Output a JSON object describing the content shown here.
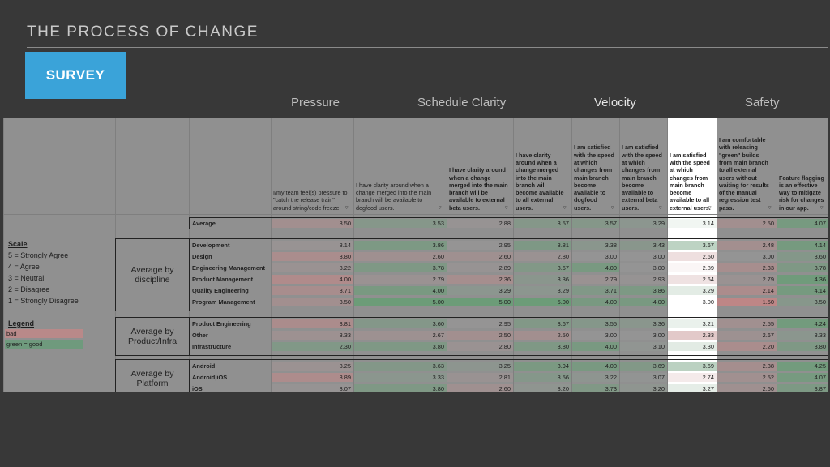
{
  "slide": {
    "title": "THE PROCESS OF CHANGE",
    "button_label": "SURVEY"
  },
  "categories": [
    "Pressure",
    "Schedule Clarity",
    "Velocity",
    "Safety"
  ],
  "columns": [
    "I/my team feel(s) pressure to \"catch the release train\" around string/code freeze.",
    "I have clarity around when a change merged into the main branch will be available to dogfood users.",
    "I have clarity around when a change merged into the main branch will be available to external beta users.",
    "I have clarity around when a change merged into the main branch will become available to all external users.",
    "I am satisfied with the speed at which changes from main branch become available to dogfood users.",
    "I am satisfied with the speed at which changes from main branch become available to external beta users.",
    "I am satisfied with the speed at which changes from main branch become available to all external users.",
    "I am comfortable with releasing \"green\" builds from main branch to all external users without waiting for results of the manual regression test pass.",
    "Feature flagging is an effective way to mitigate risk for changes in our app."
  ],
  "average_row": {
    "label": "Average",
    "values": [
      "3.50",
      "3.53",
      "2.88",
      "3.57",
      "3.57",
      "3.29",
      "3.14",
      "2.50",
      "4.07"
    ]
  },
  "groups": [
    {
      "label": "Average by discipline",
      "rows": [
        {
          "label": "Development",
          "values": [
            "3.14",
            "3.86",
            "2.95",
            "3.81",
            "3.38",
            "3.43",
            "3.67",
            "2.48",
            "4.14"
          ]
        },
        {
          "label": "Design",
          "values": [
            "3.80",
            "2.60",
            "2.60",
            "2.80",
            "3.00",
            "3.00",
            "2.60",
            "3.00",
            "3.60"
          ]
        },
        {
          "label": "Engineering Management",
          "values": [
            "3.22",
            "3.78",
            "2.89",
            "3.67",
            "4.00",
            "3.00",
            "2.89",
            "2.33",
            "3.78"
          ]
        },
        {
          "label": "Product Management",
          "values": [
            "4.00",
            "2.79",
            "2.36",
            "3.36",
            "2.79",
            "2.93",
            "2.64",
            "2.79",
            "4.36"
          ]
        },
        {
          "label": "Quality Engineering",
          "values": [
            "3.71",
            "4.00",
            "3.29",
            "3.29",
            "3.71",
            "3.86",
            "3.29",
            "2.14",
            "4.14"
          ]
        },
        {
          "label": "Program Management",
          "values": [
            "3.50",
            "5.00",
            "5.00",
            "5.00",
            "4.00",
            "4.00",
            "3.00",
            "1.50",
            "3.50"
          ]
        }
      ]
    },
    {
      "label": "Average by Product/Infra",
      "rows": [
        {
          "label": "Product Engineering",
          "values": [
            "3.81",
            "3.60",
            "2.95",
            "3.67",
            "3.55",
            "3.36",
            "3.21",
            "2.55",
            "4.24"
          ]
        },
        {
          "label": "Other",
          "values": [
            "3.33",
            "2.67",
            "2.50",
            "2.50",
            "3.00",
            "3.00",
            "2.33",
            "2.67",
            "3.33"
          ]
        },
        {
          "label": "Infrastructure",
          "values": [
            "2.30",
            "3.80",
            "2.80",
            "3.80",
            "4.00",
            "3.10",
            "3.30",
            "2.20",
            "3.80"
          ]
        }
      ]
    },
    {
      "label": "Average by Platform",
      "rows": [
        {
          "label": "Android",
          "values": [
            "3.25",
            "3.63",
            "3.25",
            "3.94",
            "4.00",
            "3.69",
            "3.69",
            "2.38",
            "4.25"
          ]
        },
        {
          "label": "Android|iOS",
          "values": [
            "3.89",
            "3.33",
            "2.81",
            "3.56",
            "3.22",
            "3.07",
            "2.74",
            "2.52",
            "4.07"
          ]
        },
        {
          "label": "iOS",
          "values": [
            "3.07",
            "3.80",
            "2.60",
            "3.20",
            "3.73",
            "3.20",
            "3.27",
            "2.60",
            "3.87"
          ]
        }
      ]
    }
  ],
  "scale": {
    "title": "Scale",
    "items": [
      "5 = Strongly Agree",
      "4 = Agree",
      "3 = Neutral",
      "2 = Disagree",
      "1 = Strongly Disagree"
    ]
  },
  "legend": {
    "title": "Legend",
    "items": [
      {
        "label": "bad",
        "color": "#b98989"
      },
      {
        "label": "green = good",
        "color": "#6f9a7d"
      }
    ]
  },
  "colors": {
    "accent": "#3aa3d9",
    "sheet": "#909090",
    "bad": "#b98989",
    "good": "#6f9a7d",
    "highlight": "#ffffff"
  }
}
